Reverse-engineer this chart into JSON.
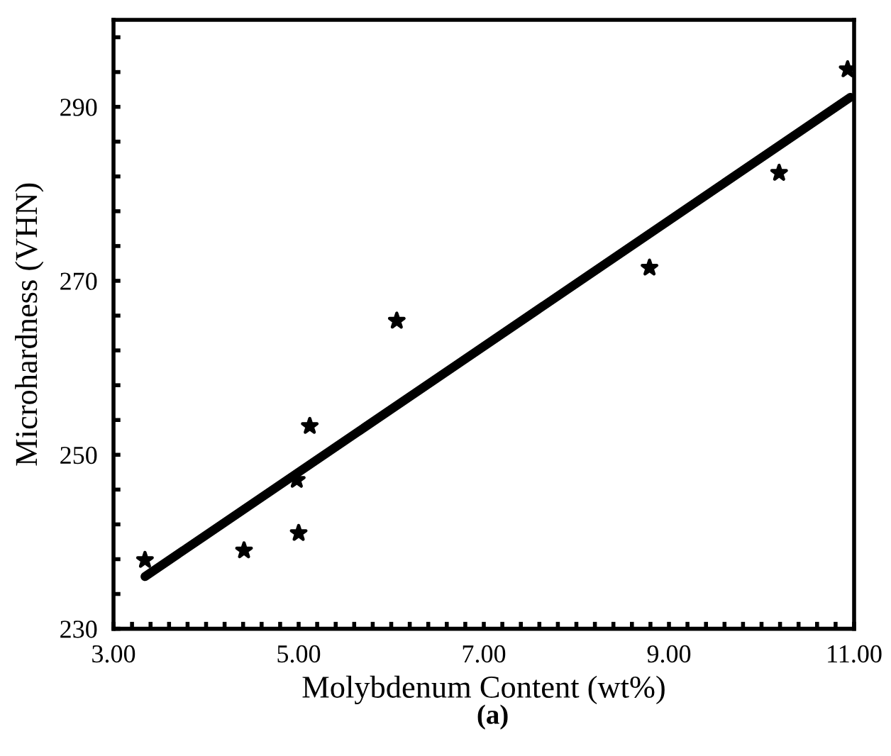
{
  "chart_data": {
    "type": "scatter",
    "xlabel": "Molybdenum Content (wt%)",
    "ylabel": "Microhardness (VHN)",
    "annotations": [
      "(a)"
    ],
    "series": [
      {
        "color": "#000000",
        "marker": "star",
        "x": [
          3.34,
          4.41,
          4.98,
          5.0,
          5.12,
          6.06,
          8.79,
          10.19,
          10.93
        ],
        "values": [
          237.9,
          239.0,
          247.1,
          241.0,
          253.3,
          265.4,
          271.5,
          282.4,
          294.3
        ]
      },
      {
        "type": "line",
        "color": "#000000",
        "line_style": "solid",
        "x": [
          3.34,
          10.96
        ],
        "values": [
          236.0,
          291.1
        ]
      }
    ],
    "xlim": [
      3.0,
      11.0
    ],
    "ylim": [
      230,
      300
    ],
    "xticks": [
      {
        "value": 3.0,
        "label": "3.00"
      },
      {
        "value": 3.2,
        "label": null
      },
      {
        "value": 3.4,
        "label": null
      },
      {
        "value": 3.6,
        "label": null
      },
      {
        "value": 3.8,
        "label": null
      },
      {
        "value": 4.0,
        "label": null
      },
      {
        "value": 4.2,
        "label": null
      },
      {
        "value": 4.4,
        "label": null
      },
      {
        "value": 4.6,
        "label": null
      },
      {
        "value": 4.8,
        "label": null
      },
      {
        "value": 5.0,
        "label": "5.00"
      },
      {
        "value": 5.2,
        "label": null
      },
      {
        "value": 5.4,
        "label": null
      },
      {
        "value": 5.6,
        "label": null
      },
      {
        "value": 5.8,
        "label": null
      },
      {
        "value": 6.0,
        "label": null
      },
      {
        "value": 6.2,
        "label": null
      },
      {
        "value": 6.4,
        "label": null
      },
      {
        "value": 6.6,
        "label": null
      },
      {
        "value": 6.8,
        "label": null
      },
      {
        "value": 7.0,
        "label": "7.00"
      },
      {
        "value": 7.2,
        "label": null
      },
      {
        "value": 7.4,
        "label": null
      },
      {
        "value": 7.6,
        "label": null
      },
      {
        "value": 7.8,
        "label": null
      },
      {
        "value": 8.0,
        "label": null
      },
      {
        "value": 8.2,
        "label": null
      },
      {
        "value": 8.4,
        "label": null
      },
      {
        "value": 8.6,
        "label": null
      },
      {
        "value": 8.8,
        "label": null
      },
      {
        "value": 9.0,
        "label": "9.00"
      },
      {
        "value": 9.2,
        "label": null
      },
      {
        "value": 9.4,
        "label": null
      },
      {
        "value": 9.6,
        "label": null
      },
      {
        "value": 9.8,
        "label": null
      },
      {
        "value": 10.0,
        "label": null
      },
      {
        "value": 10.2,
        "label": null
      },
      {
        "value": 10.4,
        "label": null
      },
      {
        "value": 10.6,
        "label": null
      },
      {
        "value": 10.8,
        "label": null
      },
      {
        "value": 11.0,
        "label": "11.00"
      }
    ],
    "yticks": [
      230,
      {
        "value": 234,
        "label": null
      },
      {
        "value": 238,
        "label": null
      },
      {
        "value": 242,
        "label": null
      },
      {
        "value": 246,
        "label": null
      },
      250,
      {
        "value": 254,
        "label": null
      },
      {
        "value": 258,
        "label": null
      },
      {
        "value": 262,
        "label": null
      },
      {
        "value": 266,
        "label": null
      },
      270,
      {
        "value": 274,
        "label": null
      },
      {
        "value": 278,
        "label": null
      },
      {
        "value": 282,
        "label": null
      },
      {
        "value": 286,
        "label": null
      },
      290,
      {
        "value": 294,
        "label": null
      },
      {
        "value": 298,
        "label": null
      }
    ],
    "grid": false,
    "legend": false
  }
}
